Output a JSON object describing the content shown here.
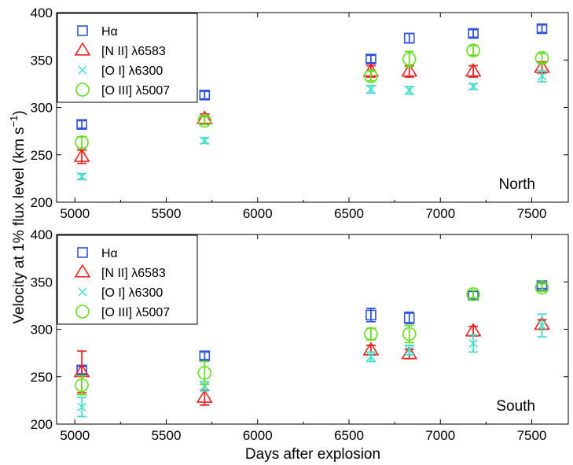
{
  "chart_data": [
    {
      "type": "scatter",
      "panel": "North",
      "label": "North",
      "xlim": [
        4900,
        7700
      ],
      "ylim": [
        200,
        400
      ],
      "xticks": [
        5000,
        5500,
        6000,
        6500,
        7000,
        7500
      ],
      "yticks": [
        200,
        250,
        300,
        350,
        400
      ],
      "legend_position": "top-left",
      "series": [
        {
          "name": "Hα",
          "marker": "square",
          "color": "#3355dd",
          "x": [
            5038,
            5710,
            6620,
            6830,
            7180,
            7556
          ],
          "y": [
            282,
            313,
            351,
            373,
            378,
            383
          ],
          "err": [
            4,
            4,
            4,
            5,
            4,
            4
          ]
        },
        {
          "name": "[N II] λ6583",
          "marker": "triangle",
          "color": "#ee2222",
          "x": [
            5038,
            5710,
            6620,
            6830,
            7180,
            7556
          ],
          "y": [
            248,
            288,
            338,
            338,
            338,
            342
          ],
          "err": [
            7,
            5,
            6,
            6,
            6,
            6
          ]
        },
        {
          "name": "[O I] λ6300",
          "marker": "x",
          "color": "#44ddcc",
          "x": [
            5038,
            5710,
            6620,
            6830,
            7180,
            7556
          ],
          "y": [
            227,
            265,
            319,
            318,
            322,
            333
          ],
          "err": [
            3,
            3,
            4,
            4,
            3,
            6
          ]
        },
        {
          "name": "[O III] λ5007",
          "marker": "circle",
          "color": "#66dd22",
          "x": [
            5038,
            5710,
            6620,
            6830,
            7180,
            7556
          ],
          "y": [
            263,
            286,
            333,
            351,
            360,
            352
          ],
          "err": [
            6,
            4,
            5,
            8,
            5,
            5
          ]
        }
      ]
    },
    {
      "type": "scatter",
      "panel": "South",
      "label": "South",
      "xlim": [
        4900,
        7700
      ],
      "ylim": [
        200,
        400
      ],
      "xticks": [
        5000,
        5500,
        6000,
        6500,
        7000,
        7500
      ],
      "yticks": [
        200,
        250,
        300,
        350,
        400
      ],
      "legend_position": "top-left",
      "series": [
        {
          "name": "Hα",
          "marker": "square",
          "color": "#3355dd",
          "x": [
            5038,
            5710,
            6620,
            6830,
            7180,
            7556
          ],
          "y": [
            257,
            272,
            315,
            312,
            336,
            346
          ],
          "err": [
            4,
            4,
            7,
            6,
            4,
            3
          ]
        },
        {
          "name": "[N II] λ6583",
          "marker": "triangle",
          "color": "#ee2222",
          "x": [
            5038,
            5710,
            6620,
            6830,
            7180,
            7556
          ],
          "y": [
            255,
            228,
            278,
            274,
            298,
            305
          ],
          "err": [
            22,
            8,
            5,
            5,
            5,
            5
          ]
        },
        {
          "name": "[O I] λ6300",
          "marker": "x",
          "color": "#44ddcc",
          "x": [
            5038,
            5710,
            6620,
            6830,
            7180,
            7556
          ],
          "y": [
            218,
            240,
            271,
            278,
            285,
            304
          ],
          "err": [
            10,
            5,
            5,
            5,
            9,
            12
          ]
        },
        {
          "name": "[O III] λ5007",
          "marker": "circle",
          "color": "#66dd22",
          "x": [
            5038,
            5710,
            6620,
            6830,
            7180,
            7556
          ],
          "y": [
            241,
            254,
            295,
            295,
            337,
            344
          ],
          "err": [
            10,
            12,
            6,
            9,
            4,
            4
          ]
        }
      ]
    }
  ],
  "axes": {
    "xlabel": "Days after explosion",
    "ylabel": "Velocity at 1% flux level (km s",
    "ylabel_superscript": "−1",
    "ylabel_suffix": ")"
  }
}
